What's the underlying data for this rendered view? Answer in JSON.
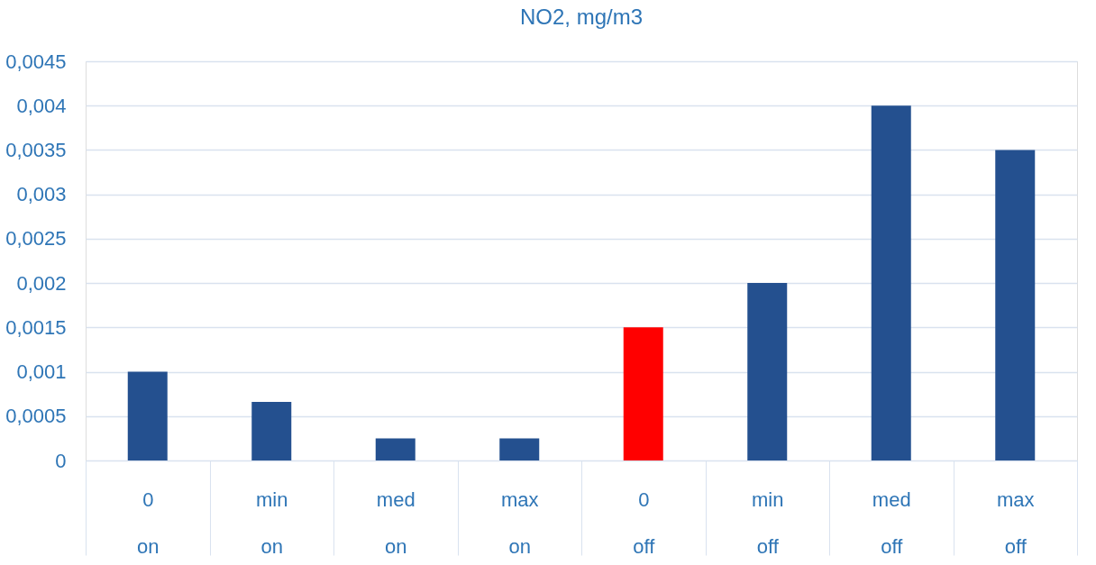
{
  "chart_data": {
    "type": "bar",
    "title": "NO2, mg/m3",
    "categories": [
      "0\non",
      "min\non",
      "med\non",
      "max\non",
      "0\noff",
      "min\noff",
      "med\noff",
      "max\noff"
    ],
    "values": [
      0.001,
      0.00066,
      0.00025,
      0.00025,
      0.0015,
      0.002,
      0.004,
      0.0035
    ],
    "colors": [
      "#24508f",
      "#24508f",
      "#24508f",
      "#24508f",
      "#ff0000",
      "#24508f",
      "#24508f",
      "#24508f"
    ],
    "ylim": [
      0,
      0.0045
    ],
    "yticks": [
      {
        "value": 0,
        "label": "0"
      },
      {
        "value": 0.0005,
        "label": "0,0005"
      },
      {
        "value": 0.001,
        "label": "0,001"
      },
      {
        "value": 0.0015,
        "label": "0,0015"
      },
      {
        "value": 0.002,
        "label": "0,002"
      },
      {
        "value": 0.0025,
        "label": "0,0025"
      },
      {
        "value": 0.003,
        "label": "0,003"
      },
      {
        "value": 0.0035,
        "label": "0,0035"
      },
      {
        "value": 0.004,
        "label": "0,004"
      },
      {
        "value": 0.0045,
        "label": "0,0045"
      }
    ],
    "grid": "y"
  }
}
